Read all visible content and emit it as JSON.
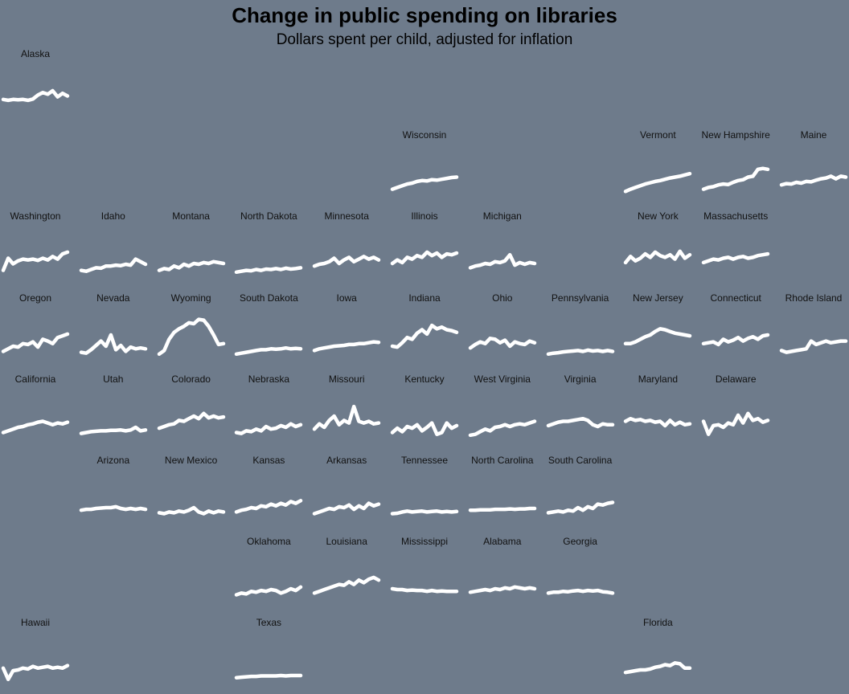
{
  "chart_data": {
    "type": "line",
    "title": "Change in public spending on libraries",
    "subtitle": "Dollars spent per child, adjusted for inflation",
    "background": "#6e7b8b",
    "line_color": "#ffffff",
    "layout": "small multiples, US state tile grid",
    "series": [
      {
        "name": "Alaska",
        "row": 0,
        "col": 0,
        "values": [
          0.3,
          0.28,
          0.3,
          0.29,
          0.3,
          0.28,
          0.31,
          0.4,
          0.46,
          0.42,
          0.5,
          0.36,
          0.44,
          0.38
        ]
      },
      {
        "name": "Wisconsin",
        "row": 1,
        "col": 5,
        "values": [
          0.1,
          0.14,
          0.18,
          0.22,
          0.24,
          0.28,
          0.3,
          0.29,
          0.32,
          0.31,
          0.33,
          0.35,
          0.37,
          0.38
        ]
      },
      {
        "name": "Vermont",
        "row": 1,
        "col": 8,
        "values": [
          0.05,
          0.1,
          0.14,
          0.18,
          0.22,
          0.25,
          0.28,
          0.3,
          0.33,
          0.36,
          0.38,
          0.4,
          0.43,
          0.46
        ]
      },
      {
        "name": "New Hampshire",
        "row": 1,
        "col": 9,
        "values": [
          0.1,
          0.14,
          0.16,
          0.2,
          0.22,
          0.21,
          0.26,
          0.3,
          0.32,
          0.38,
          0.4,
          0.56,
          0.58,
          0.56
        ]
      },
      {
        "name": "Maine",
        "row": 1,
        "col": 10,
        "values": [
          0.2,
          0.23,
          0.22,
          0.26,
          0.24,
          0.28,
          0.27,
          0.31,
          0.34,
          0.36,
          0.4,
          0.34,
          0.4,
          0.38
        ]
      },
      {
        "name": "Washington",
        "row": 2,
        "col": 0,
        "values": [
          0.1,
          0.38,
          0.25,
          0.32,
          0.36,
          0.34,
          0.36,
          0.33,
          0.38,
          0.34,
          0.42,
          0.36,
          0.48,
          0.52
        ]
      },
      {
        "name": "Idaho",
        "row": 2,
        "col": 1,
        "values": [
          0.1,
          0.08,
          0.12,
          0.16,
          0.15,
          0.2,
          0.2,
          0.22,
          0.21,
          0.24,
          0.22,
          0.36,
          0.3,
          0.24
        ]
      },
      {
        "name": "Montana",
        "row": 2,
        "col": 2,
        "values": [
          0.1,
          0.14,
          0.12,
          0.2,
          0.16,
          0.24,
          0.2,
          0.26,
          0.24,
          0.28,
          0.26,
          0.3,
          0.28,
          0.26
        ]
      },
      {
        "name": "North Dakota",
        "row": 2,
        "col": 3,
        "values": [
          0.06,
          0.08,
          0.1,
          0.09,
          0.12,
          0.1,
          0.13,
          0.12,
          0.14,
          0.12,
          0.15,
          0.13,
          0.14,
          0.16
        ]
      },
      {
        "name": "Minnesota",
        "row": 2,
        "col": 4,
        "values": [
          0.2,
          0.24,
          0.26,
          0.3,
          0.38,
          0.26,
          0.34,
          0.4,
          0.3,
          0.36,
          0.42,
          0.36,
          0.4,
          0.34
        ]
      },
      {
        "name": "Illinois",
        "row": 2,
        "col": 5,
        "values": [
          0.26,
          0.34,
          0.28,
          0.4,
          0.36,
          0.44,
          0.4,
          0.52,
          0.44,
          0.5,
          0.4,
          0.48,
          0.46,
          0.5
        ]
      },
      {
        "name": "Michigan",
        "row": 2,
        "col": 6,
        "values": [
          0.16,
          0.2,
          0.22,
          0.26,
          0.24,
          0.3,
          0.28,
          0.32,
          0.46,
          0.22,
          0.28,
          0.24,
          0.28,
          0.26
        ]
      },
      {
        "name": "New York",
        "row": 2,
        "col": 8,
        "values": [
          0.28,
          0.42,
          0.32,
          0.38,
          0.48,
          0.4,
          0.52,
          0.44,
          0.4,
          0.46,
          0.36,
          0.54,
          0.38,
          0.46
        ]
      },
      {
        "name": "Massachusetts",
        "row": 2,
        "col": 9,
        "values": [
          0.28,
          0.32,
          0.36,
          0.34,
          0.38,
          0.4,
          0.36,
          0.4,
          0.42,
          0.38,
          0.4,
          0.44,
          0.46,
          0.48
        ]
      },
      {
        "name": "Oregon",
        "row": 3,
        "col": 0,
        "values": [
          0.12,
          0.18,
          0.24,
          0.22,
          0.3,
          0.28,
          0.34,
          0.22,
          0.4,
          0.36,
          0.3,
          0.44,
          0.48,
          0.52
        ]
      },
      {
        "name": "Nevada",
        "row": 3,
        "col": 1,
        "values": [
          0.1,
          0.08,
          0.16,
          0.26,
          0.36,
          0.24,
          0.5,
          0.16,
          0.26,
          0.12,
          0.22,
          0.18,
          0.2,
          0.18
        ]
      },
      {
        "name": "Wyoming",
        "row": 3,
        "col": 2,
        "values": [
          0.06,
          0.14,
          0.4,
          0.56,
          0.64,
          0.7,
          0.78,
          0.76,
          0.86,
          0.84,
          0.7,
          0.5,
          0.28,
          0.3
        ]
      },
      {
        "name": "South Dakota",
        "row": 3,
        "col": 3,
        "values": [
          0.06,
          0.08,
          0.1,
          0.12,
          0.14,
          0.16,
          0.16,
          0.18,
          0.17,
          0.18,
          0.2,
          0.18,
          0.19,
          0.18
        ]
      },
      {
        "name": "Iowa",
        "row": 3,
        "col": 4,
        "values": [
          0.14,
          0.18,
          0.2,
          0.22,
          0.24,
          0.25,
          0.26,
          0.28,
          0.28,
          0.3,
          0.3,
          0.32,
          0.34,
          0.33
        ]
      },
      {
        "name": "Indiana",
        "row": 3,
        "col": 5,
        "values": [
          0.24,
          0.22,
          0.32,
          0.44,
          0.4,
          0.54,
          0.62,
          0.52,
          0.72,
          0.64,
          0.68,
          0.62,
          0.6,
          0.56
        ]
      },
      {
        "name": "Ohio",
        "row": 3,
        "col": 6,
        "values": [
          0.2,
          0.28,
          0.34,
          0.3,
          0.42,
          0.4,
          0.32,
          0.38,
          0.24,
          0.34,
          0.3,
          0.28,
          0.36,
          0.32
        ]
      },
      {
        "name": "Pennsylvania",
        "row": 3,
        "col": 7,
        "values": [
          0.06,
          0.08,
          0.09,
          0.11,
          0.12,
          0.13,
          0.14,
          0.12,
          0.15,
          0.13,
          0.14,
          0.12,
          0.14,
          0.12
        ]
      },
      {
        "name": "New Jersey",
        "row": 3,
        "col": 8,
        "values": [
          0.3,
          0.3,
          0.34,
          0.4,
          0.46,
          0.5,
          0.58,
          0.64,
          0.62,
          0.58,
          0.54,
          0.52,
          0.5,
          0.48
        ]
      },
      {
        "name": "Connecticut",
        "row": 3,
        "col": 9,
        "values": [
          0.3,
          0.32,
          0.34,
          0.28,
          0.4,
          0.34,
          0.38,
          0.44,
          0.36,
          0.42,
          0.46,
          0.4,
          0.48,
          0.5
        ]
      },
      {
        "name": "Rhode Island",
        "row": 3,
        "col": 10,
        "values": [
          0.14,
          0.1,
          0.12,
          0.14,
          0.16,
          0.18,
          0.36,
          0.28,
          0.32,
          0.36,
          0.32,
          0.34,
          0.36,
          0.36
        ]
      },
      {
        "name": "California",
        "row": 4,
        "col": 0,
        "values": [
          0.12,
          0.16,
          0.2,
          0.24,
          0.26,
          0.3,
          0.32,
          0.36,
          0.38,
          0.34,
          0.3,
          0.34,
          0.32,
          0.36
        ]
      },
      {
        "name": "Utah",
        "row": 4,
        "col": 1,
        "values": [
          0.1,
          0.12,
          0.14,
          0.15,
          0.16,
          0.16,
          0.17,
          0.17,
          0.18,
          0.16,
          0.18,
          0.24,
          0.16,
          0.18
        ]
      },
      {
        "name": "Colorado",
        "row": 4,
        "col": 2,
        "values": [
          0.22,
          0.26,
          0.3,
          0.32,
          0.4,
          0.38,
          0.44,
          0.5,
          0.44,
          0.56,
          0.46,
          0.5,
          0.46,
          0.48
        ]
      },
      {
        "name": "Nebraska",
        "row": 4,
        "col": 3,
        "values": [
          0.12,
          0.1,
          0.16,
          0.14,
          0.2,
          0.16,
          0.26,
          0.2,
          0.22,
          0.28,
          0.24,
          0.32,
          0.26,
          0.3
        ]
      },
      {
        "name": "Missouri",
        "row": 4,
        "col": 4,
        "values": [
          0.2,
          0.32,
          0.24,
          0.4,
          0.5,
          0.3,
          0.4,
          0.34,
          0.72,
          0.38,
          0.34,
          0.38,
          0.32,
          0.34
        ]
      },
      {
        "name": "Kentucky",
        "row": 4,
        "col": 5,
        "values": [
          0.12,
          0.22,
          0.14,
          0.26,
          0.22,
          0.3,
          0.16,
          0.24,
          0.34,
          0.08,
          0.12,
          0.34,
          0.22,
          0.28
        ]
      },
      {
        "name": "West Virginia",
        "row": 4,
        "col": 6,
        "values": [
          0.06,
          0.08,
          0.14,
          0.2,
          0.16,
          0.24,
          0.26,
          0.3,
          0.26,
          0.3,
          0.32,
          0.3,
          0.34,
          0.38
        ]
      },
      {
        "name": "Virginia",
        "row": 4,
        "col": 7,
        "values": [
          0.28,
          0.32,
          0.36,
          0.38,
          0.38,
          0.4,
          0.42,
          0.44,
          0.4,
          0.3,
          0.26,
          0.32,
          0.3,
          0.3
        ]
      },
      {
        "name": "Maryland",
        "row": 4,
        "col": 8,
        "values": [
          0.38,
          0.44,
          0.4,
          0.42,
          0.38,
          0.4,
          0.36,
          0.38,
          0.28,
          0.4,
          0.3,
          0.36,
          0.3,
          0.32
        ]
      },
      {
        "name": "Delaware",
        "row": 4,
        "col": 9,
        "values": [
          0.38,
          0.08,
          0.28,
          0.3,
          0.24,
          0.34,
          0.3,
          0.52,
          0.34,
          0.56,
          0.4,
          0.44,
          0.36,
          0.4
        ]
      },
      {
        "name": "Arizona",
        "row": 5,
        "col": 1,
        "values": [
          0.2,
          0.22,
          0.22,
          0.24,
          0.25,
          0.26,
          0.26,
          0.28,
          0.24,
          0.22,
          0.24,
          0.22,
          0.24,
          0.22
        ]
      },
      {
        "name": "New Mexico",
        "row": 5,
        "col": 2,
        "values": [
          0.14,
          0.12,
          0.16,
          0.14,
          0.18,
          0.16,
          0.2,
          0.26,
          0.16,
          0.12,
          0.18,
          0.14,
          0.18,
          0.16
        ]
      },
      {
        "name": "Kansas",
        "row": 5,
        "col": 3,
        "values": [
          0.16,
          0.2,
          0.22,
          0.26,
          0.24,
          0.3,
          0.28,
          0.34,
          0.3,
          0.36,
          0.32,
          0.4,
          0.36,
          0.42
        ]
      },
      {
        "name": "Arkansas",
        "row": 5,
        "col": 4,
        "values": [
          0.12,
          0.16,
          0.2,
          0.24,
          0.22,
          0.28,
          0.26,
          0.32,
          0.22,
          0.3,
          0.24,
          0.36,
          0.3,
          0.34
        ]
      },
      {
        "name": "Tennessee",
        "row": 5,
        "col": 5,
        "values": [
          0.12,
          0.13,
          0.16,
          0.18,
          0.16,
          0.17,
          0.18,
          0.16,
          0.17,
          0.18,
          0.16,
          0.17,
          0.16,
          0.17
        ]
      },
      {
        "name": "North Carolina",
        "row": 5,
        "col": 6,
        "values": [
          0.2,
          0.2,
          0.21,
          0.21,
          0.21,
          0.22,
          0.22,
          0.22,
          0.23,
          0.22,
          0.23,
          0.23,
          0.24,
          0.24
        ]
      },
      {
        "name": "South Carolina",
        "row": 5,
        "col": 7,
        "values": [
          0.14,
          0.16,
          0.18,
          0.16,
          0.2,
          0.18,
          0.26,
          0.2,
          0.28,
          0.24,
          0.34,
          0.32,
          0.36,
          0.38
        ]
      },
      {
        "name": "Oklahoma",
        "row": 6,
        "col": 3,
        "values": [
          0.12,
          0.16,
          0.14,
          0.2,
          0.18,
          0.22,
          0.2,
          0.24,
          0.22,
          0.16,
          0.2,
          0.26,
          0.22,
          0.3
        ]
      },
      {
        "name": "Louisiana",
        "row": 6,
        "col": 4,
        "values": [
          0.16,
          0.2,
          0.24,
          0.28,
          0.32,
          0.36,
          0.34,
          0.42,
          0.36,
          0.46,
          0.4,
          0.48,
          0.52,
          0.46
        ]
      },
      {
        "name": "Mississippi",
        "row": 6,
        "col": 5,
        "values": [
          0.26,
          0.24,
          0.24,
          0.22,
          0.23,
          0.22,
          0.22,
          0.2,
          0.22,
          0.2,
          0.21,
          0.2,
          0.2,
          0.2
        ]
      },
      {
        "name": "Alabama",
        "row": 6,
        "col": 6,
        "values": [
          0.18,
          0.2,
          0.22,
          0.24,
          0.22,
          0.26,
          0.24,
          0.28,
          0.26,
          0.3,
          0.28,
          0.26,
          0.28,
          0.26
        ]
      },
      {
        "name": "Georgia",
        "row": 6,
        "col": 7,
        "values": [
          0.16,
          0.18,
          0.18,
          0.2,
          0.19,
          0.21,
          0.22,
          0.2,
          0.22,
          0.21,
          0.22,
          0.19,
          0.18,
          0.16
        ]
      },
      {
        "name": "Hawaii",
        "row": 7,
        "col": 0,
        "values": [
          0.3,
          0.04,
          0.24,
          0.26,
          0.3,
          0.28,
          0.34,
          0.3,
          0.32,
          0.34,
          0.3,
          0.32,
          0.3,
          0.36
        ]
      },
      {
        "name": "Texas",
        "row": 7,
        "col": 3,
        "values": [
          0.08,
          0.09,
          0.1,
          0.11,
          0.11,
          0.12,
          0.12,
          0.12,
          0.12,
          0.13,
          0.12,
          0.13,
          0.13,
          0.13
        ]
      },
      {
        "name": "Florida",
        "row": 7,
        "col": 8,
        "values": [
          0.2,
          0.22,
          0.24,
          0.26,
          0.26,
          0.28,
          0.32,
          0.34,
          0.38,
          0.36,
          0.42,
          0.4,
          0.3,
          0.3
        ]
      }
    ]
  }
}
